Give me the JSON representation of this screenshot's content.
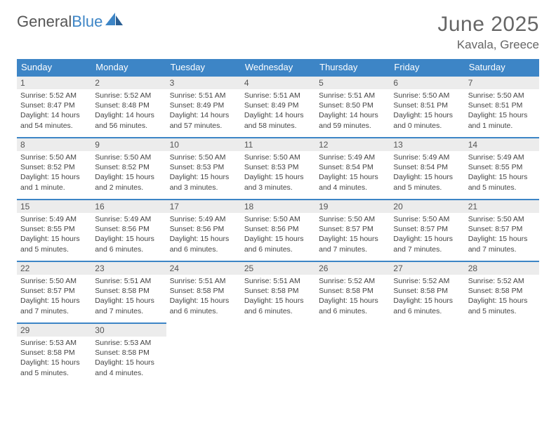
{
  "brand": {
    "part1": "General",
    "part2": "Blue"
  },
  "title": "June 2025",
  "location": "Kavala, Greece",
  "colors": {
    "header_bg": "#3d85c6",
    "header_fg": "#ffffff",
    "daynum_bg": "#ececec",
    "daynum_border": "#3d85c6",
    "text": "#444444",
    "title_color": "#666666"
  },
  "weekdays": [
    "Sunday",
    "Monday",
    "Tuesday",
    "Wednesday",
    "Thursday",
    "Friday",
    "Saturday"
  ],
  "days": [
    {
      "n": 1,
      "sr": "5:52 AM",
      "ss": "8:47 PM",
      "dl": "14 hours and 54 minutes."
    },
    {
      "n": 2,
      "sr": "5:52 AM",
      "ss": "8:48 PM",
      "dl": "14 hours and 56 minutes."
    },
    {
      "n": 3,
      "sr": "5:51 AM",
      "ss": "8:49 PM",
      "dl": "14 hours and 57 minutes."
    },
    {
      "n": 4,
      "sr": "5:51 AM",
      "ss": "8:49 PM",
      "dl": "14 hours and 58 minutes."
    },
    {
      "n": 5,
      "sr": "5:51 AM",
      "ss": "8:50 PM",
      "dl": "14 hours and 59 minutes."
    },
    {
      "n": 6,
      "sr": "5:50 AM",
      "ss": "8:51 PM",
      "dl": "15 hours and 0 minutes."
    },
    {
      "n": 7,
      "sr": "5:50 AM",
      "ss": "8:51 PM",
      "dl": "15 hours and 1 minute."
    },
    {
      "n": 8,
      "sr": "5:50 AM",
      "ss": "8:52 PM",
      "dl": "15 hours and 1 minute."
    },
    {
      "n": 9,
      "sr": "5:50 AM",
      "ss": "8:52 PM",
      "dl": "15 hours and 2 minutes."
    },
    {
      "n": 10,
      "sr": "5:50 AM",
      "ss": "8:53 PM",
      "dl": "15 hours and 3 minutes."
    },
    {
      "n": 11,
      "sr": "5:50 AM",
      "ss": "8:53 PM",
      "dl": "15 hours and 3 minutes."
    },
    {
      "n": 12,
      "sr": "5:49 AM",
      "ss": "8:54 PM",
      "dl": "15 hours and 4 minutes."
    },
    {
      "n": 13,
      "sr": "5:49 AM",
      "ss": "8:54 PM",
      "dl": "15 hours and 5 minutes."
    },
    {
      "n": 14,
      "sr": "5:49 AM",
      "ss": "8:55 PM",
      "dl": "15 hours and 5 minutes."
    },
    {
      "n": 15,
      "sr": "5:49 AM",
      "ss": "8:55 PM",
      "dl": "15 hours and 5 minutes."
    },
    {
      "n": 16,
      "sr": "5:49 AM",
      "ss": "8:56 PM",
      "dl": "15 hours and 6 minutes."
    },
    {
      "n": 17,
      "sr": "5:49 AM",
      "ss": "8:56 PM",
      "dl": "15 hours and 6 minutes."
    },
    {
      "n": 18,
      "sr": "5:50 AM",
      "ss": "8:56 PM",
      "dl": "15 hours and 6 minutes."
    },
    {
      "n": 19,
      "sr": "5:50 AM",
      "ss": "8:57 PM",
      "dl": "15 hours and 7 minutes."
    },
    {
      "n": 20,
      "sr": "5:50 AM",
      "ss": "8:57 PM",
      "dl": "15 hours and 7 minutes."
    },
    {
      "n": 21,
      "sr": "5:50 AM",
      "ss": "8:57 PM",
      "dl": "15 hours and 7 minutes."
    },
    {
      "n": 22,
      "sr": "5:50 AM",
      "ss": "8:57 PM",
      "dl": "15 hours and 7 minutes."
    },
    {
      "n": 23,
      "sr": "5:51 AM",
      "ss": "8:58 PM",
      "dl": "15 hours and 7 minutes."
    },
    {
      "n": 24,
      "sr": "5:51 AM",
      "ss": "8:58 PM",
      "dl": "15 hours and 6 minutes."
    },
    {
      "n": 25,
      "sr": "5:51 AM",
      "ss": "8:58 PM",
      "dl": "15 hours and 6 minutes."
    },
    {
      "n": 26,
      "sr": "5:52 AM",
      "ss": "8:58 PM",
      "dl": "15 hours and 6 minutes."
    },
    {
      "n": 27,
      "sr": "5:52 AM",
      "ss": "8:58 PM",
      "dl": "15 hours and 6 minutes."
    },
    {
      "n": 28,
      "sr": "5:52 AM",
      "ss": "8:58 PM",
      "dl": "15 hours and 5 minutes."
    },
    {
      "n": 29,
      "sr": "5:53 AM",
      "ss": "8:58 PM",
      "dl": "15 hours and 5 minutes."
    },
    {
      "n": 30,
      "sr": "5:53 AM",
      "ss": "8:58 PM",
      "dl": "15 hours and 4 minutes."
    }
  ],
  "labels": {
    "sunrise": "Sunrise:",
    "sunset": "Sunset:",
    "daylight": "Daylight:"
  }
}
